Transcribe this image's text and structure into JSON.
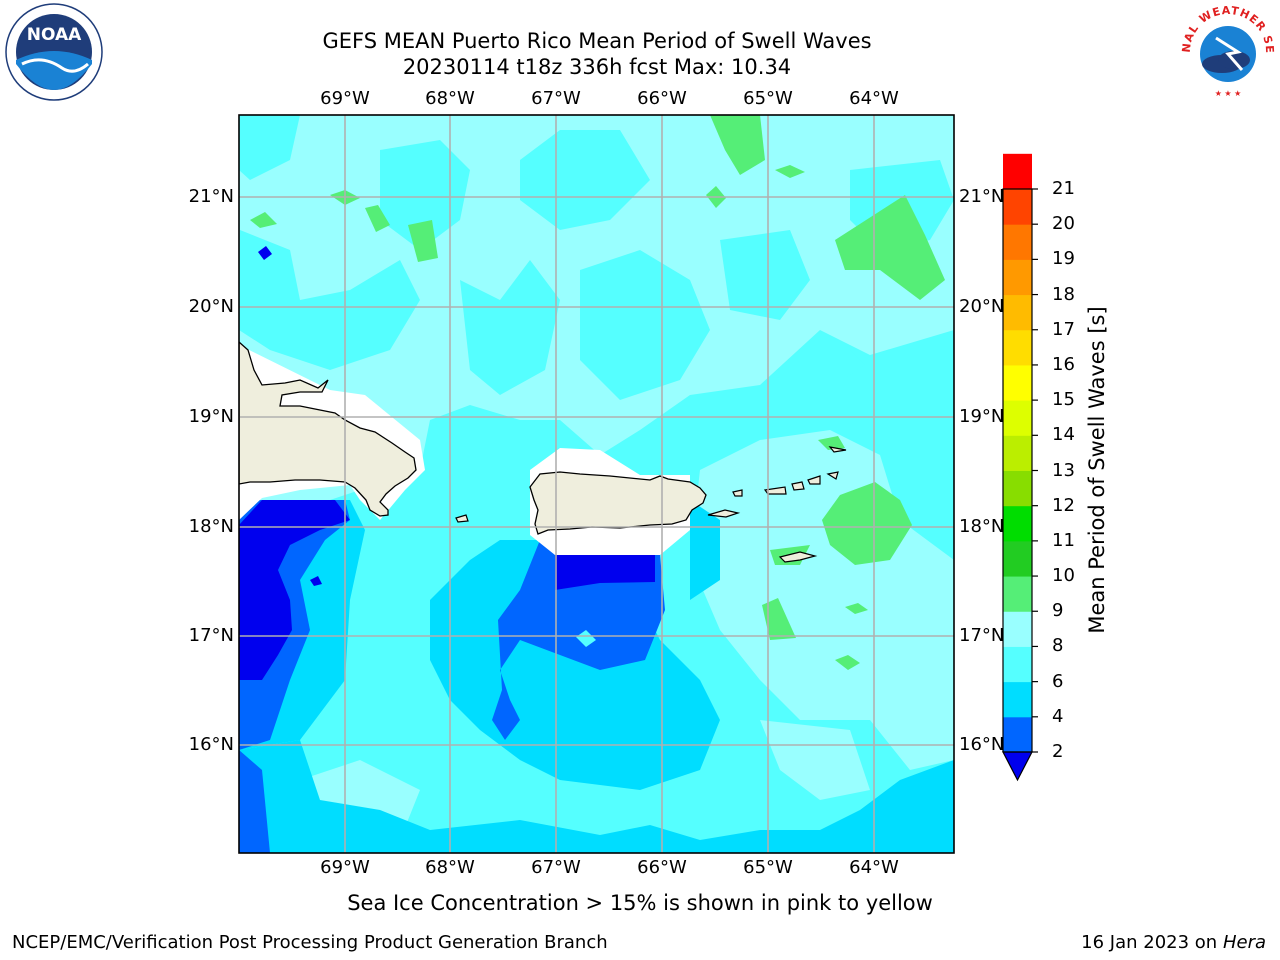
{
  "title_line1": "GEFS MEAN Puerto Rico Mean Period of Swell Waves",
  "title_line2": "20230114 t18z 336h fcst   Max: 10.34",
  "lon_labels": [
    "69°W",
    "68°W",
    "67°W",
    "66°W",
    "65°W",
    "64°W"
  ],
  "lat_labels": [
    "21°N",
    "20°N",
    "19°N",
    "18°N",
    "17°N",
    "16°N"
  ],
  "colorbar": {
    "title": "Mean Period of Swell Waves [s]",
    "ticks": [
      "2",
      "4",
      "6",
      "8",
      "9",
      "10",
      "11",
      "12",
      "13",
      "14",
      "15",
      "16",
      "17",
      "18",
      "19",
      "20",
      "21"
    ],
    "colors": [
      "#0066ff",
      "#00ddff",
      "#55ffff",
      "#99ffff",
      "#55ee77",
      "#22cc22",
      "#00dd00",
      "#88dd00",
      "#bbee00",
      "#ddff00",
      "#ffff00",
      "#ffdd00",
      "#ffbb00",
      "#ff9900",
      "#ff7700",
      "#ff4400",
      "#ff0000"
    ],
    "underflow_color": "#0000ee"
  },
  "footnote": "Sea Ice Concentration > 15% is shown in pink to yellow",
  "credit": "NCEP/EMC/Verification Post Processing Product Generation Branch",
  "date_prefix": "16 Jan 2023 on",
  "machine": "Hera",
  "noaa_logo_text": "NOAA",
  "nws_logo_text": "NATIONAL WEATHER SERVICE"
}
